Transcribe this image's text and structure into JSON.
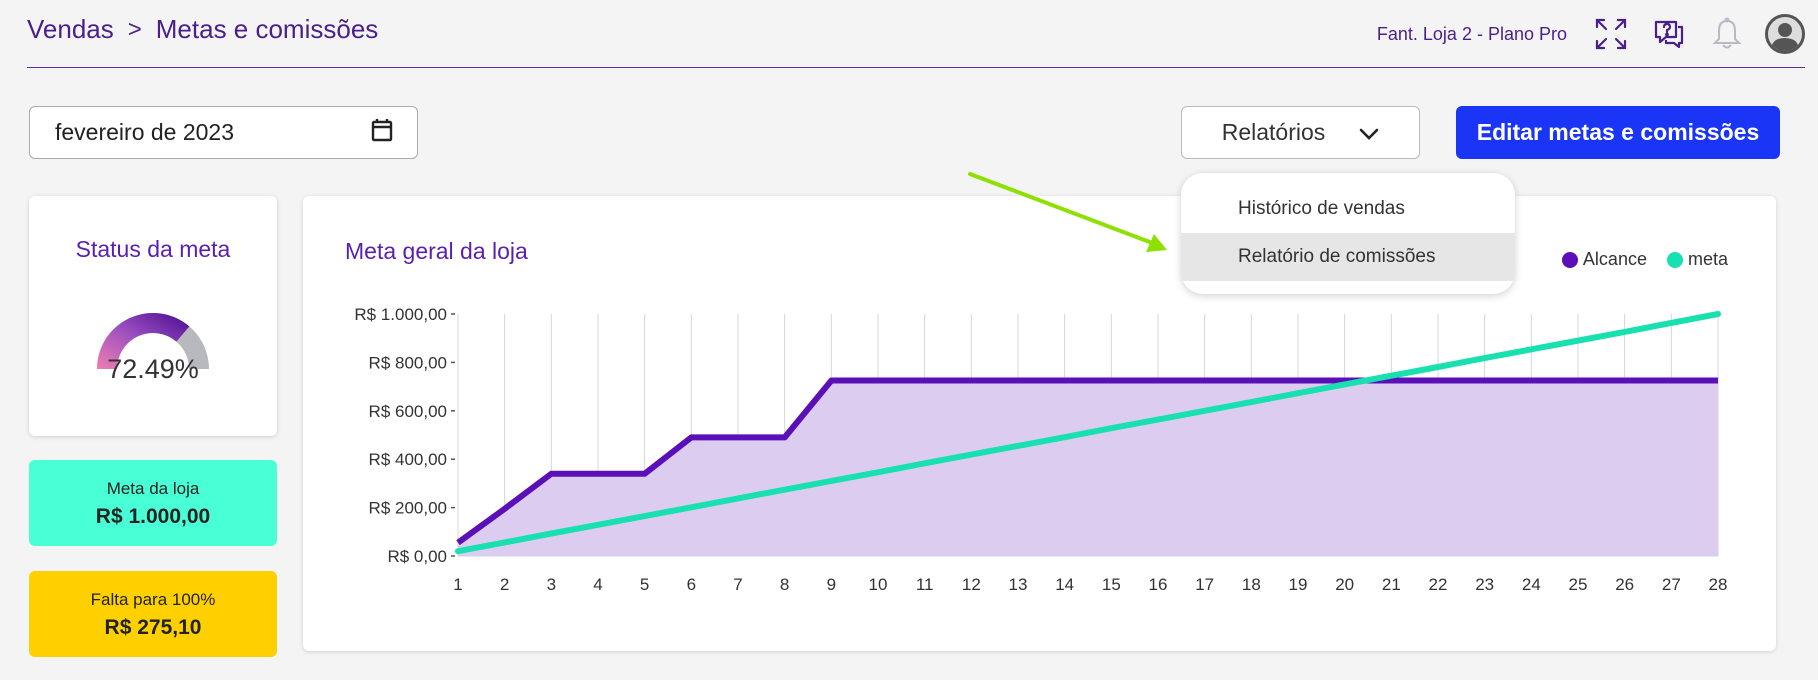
{
  "header": {
    "breadcrumb": [
      "Vendas",
      "Metas e comissões"
    ],
    "separator": ">",
    "store_plan": "Fant. Loja 2 - Plano Pro",
    "icons": [
      "expand-icon",
      "help-chat-icon",
      "bell-icon",
      "user-avatar-icon"
    ]
  },
  "filters": {
    "date_value": "fevereiro de 2023",
    "reports_label": "Relatórios",
    "edit_button": "Editar metas e comissões"
  },
  "reports_menu": {
    "items": [
      "Histórico de vendas",
      "Relatório de comissões"
    ],
    "highlighted_index": 1
  },
  "status": {
    "title": "Status da meta",
    "percent_text": "72.49%",
    "percent": 72.49
  },
  "kpis": {
    "meta_label": "Meta da loja",
    "meta_value": "R$ 1.000,00",
    "falta_label": "Falta para 100%",
    "falta_value": "R$ 275,10"
  },
  "colors": {
    "accent": "#1a35f5",
    "purple": "#5a0fb8",
    "teal": "#19e0b0",
    "meta_card": "#48ffd6",
    "falta_card": "#ffd000",
    "annotation_arrow": "#8ee000"
  },
  "chart_data": {
    "type": "area",
    "title": "Meta geral da loja",
    "x": [
      1,
      2,
      3,
      4,
      5,
      6,
      7,
      8,
      9,
      10,
      11,
      12,
      13,
      14,
      15,
      16,
      17,
      18,
      19,
      20,
      21,
      22,
      23,
      24,
      25,
      26,
      27,
      28
    ],
    "ylim": [
      0,
      1000
    ],
    "yticks": [
      "R$ 0,00",
      "R$ 200,00",
      "R$ 400,00",
      "R$ 600,00",
      "R$ 800,00",
      "R$ 1.000,00"
    ],
    "grid": "vertical",
    "legend_position": "top-right",
    "series": [
      {
        "name": "Alcance",
        "color": "#5a0fb8",
        "fill": "#dccdf0",
        "values": [
          55,
          195,
          340,
          340,
          340,
          490,
          490,
          490,
          725,
          725,
          725,
          725,
          725,
          725,
          725,
          725,
          725,
          725,
          725,
          725,
          725,
          725,
          725,
          725,
          725,
          725,
          725,
          725
        ]
      },
      {
        "name": "meta",
        "color": "#19e0b0",
        "values": [
          20,
          56,
          93,
          129,
          165,
          201,
          238,
          274,
          310,
          346,
          383,
          419,
          455,
          491,
          528,
          564,
          600,
          636,
          673,
          709,
          745,
          781,
          818,
          854,
          890,
          926,
          963,
          1000
        ]
      }
    ]
  }
}
